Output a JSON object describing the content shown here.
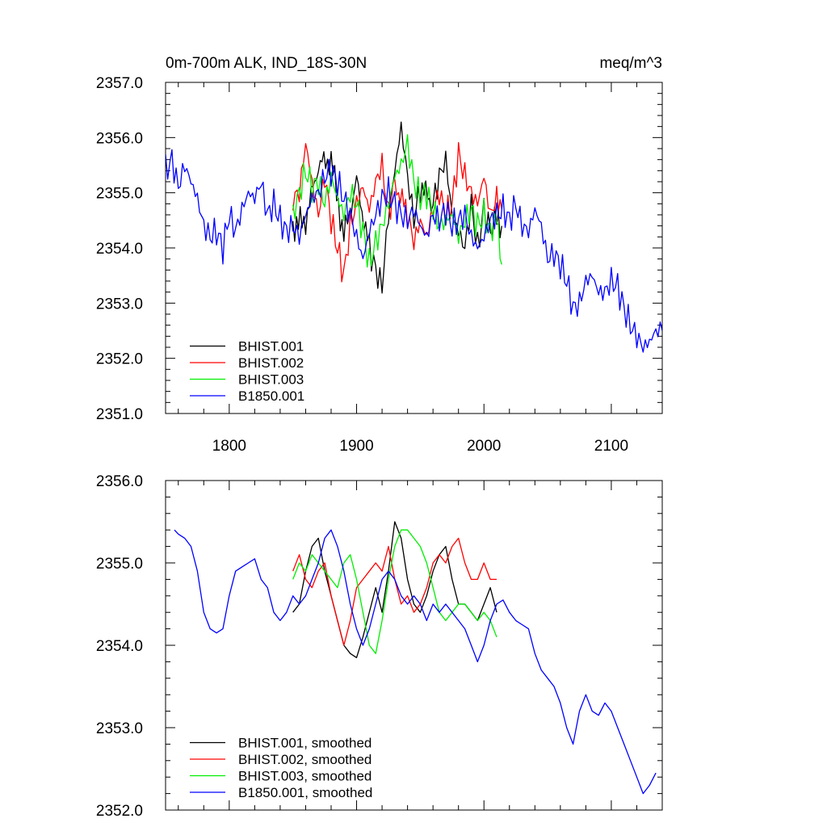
{
  "chart_data": [
    {
      "type": "line",
      "title": "0m-700m ALK, IND_18S-30N",
      "units": "meq/m^3",
      "xlim": [
        1750,
        2140
      ],
      "ylim": [
        2351.0,
        2357.0
      ],
      "yticks": [
        "2351.0",
        "2352.0",
        "2353.0",
        "2354.0",
        "2355.0",
        "2356.0",
        "2357.0"
      ],
      "xticks": [
        "1800",
        "1900",
        "2000",
        "2100"
      ],
      "legend": "bottom-left",
      "series": [
        {
          "name": "BHIST.001",
          "color": "#000000",
          "x": [
            1850,
            1860,
            1870,
            1880,
            1890,
            1900,
            1910,
            1915,
            1920,
            1925,
            1930,
            1935,
            1940,
            1945,
            1950,
            1960,
            1965,
            1970,
            1975,
            1980,
            1985,
            1990,
            1995,
            2000,
            2005,
            2010,
            2014
          ],
          "y": [
            2354.4,
            2354.5,
            2355.5,
            2355.6,
            2354.2,
            2355.2,
            2354.0,
            2353.6,
            2353.3,
            2354.6,
            2355.4,
            2356.2,
            2355.3,
            2354.5,
            2355.1,
            2354.8,
            2355.3,
            2355.6,
            2354.6,
            2354.3,
            2354.0,
            2354.8,
            2354.0,
            2354.7,
            2354.3,
            2354.6,
            2354.4
          ]
        },
        {
          "name": "BHIST.002",
          "color": "#ff0000",
          "x": [
            1850,
            1855,
            1860,
            1865,
            1870,
            1875,
            1880,
            1885,
            1890,
            1895,
            1900,
            1905,
            1910,
            1915,
            1920,
            1925,
            1930,
            1940,
            1945,
            1950,
            1955,
            1960,
            1965,
            1970,
            1975,
            1980,
            1985,
            1990,
            1995,
            2000,
            2005,
            2010,
            2014
          ],
          "y": [
            2354.9,
            2355.0,
            2355.9,
            2355.2,
            2354.6,
            2355.3,
            2354.5,
            2354.0,
            2353.5,
            2354.4,
            2354.8,
            2355.1,
            2354.7,
            2355.2,
            2355.5,
            2354.6,
            2355.2,
            2354.6,
            2354.1,
            2354.5,
            2354.2,
            2354.7,
            2355.0,
            2354.6,
            2354.8,
            2355.7,
            2355.3,
            2355.0,
            2354.8,
            2355.3,
            2354.6,
            2354.9,
            2354.7
          ]
        },
        {
          "name": "BHIST.003",
          "color": "#00ee00",
          "x": [
            1850,
            1855,
            1860,
            1865,
            1870,
            1875,
            1880,
            1885,
            1890,
            1895,
            1900,
            1905,
            1910,
            1915,
            1920,
            1925,
            1930,
            1935,
            1940,
            1945,
            1950,
            1955,
            1960,
            1965,
            1970,
            1975,
            1980,
            1985,
            1990,
            1995,
            2000,
            2005,
            2010,
            2014
          ],
          "y": [
            2354.6,
            2355.0,
            2355.4,
            2355.1,
            2355.2,
            2354.8,
            2355.3,
            2354.9,
            2354.6,
            2355.0,
            2354.8,
            2354.3,
            2353.7,
            2354.1,
            2354.4,
            2354.8,
            2355.3,
            2355.5,
            2355.9,
            2355.2,
            2354.9,
            2355.0,
            2354.7,
            2354.4,
            2354.5,
            2354.6,
            2354.2,
            2354.5,
            2354.7,
            2354.4,
            2354.6,
            2354.3,
            2354.5,
            2353.7
          ]
        },
        {
          "name": "B1850.001",
          "color": "#0000ff",
          "x": [
            1750,
            1755,
            1760,
            1765,
            1770,
            1775,
            1780,
            1785,
            1790,
            1795,
            1800,
            1805,
            1810,
            1815,
            1820,
            1825,
            1830,
            1835,
            1840,
            1845,
            1850,
            1855,
            1860,
            1865,
            1870,
            1875,
            1880,
            1885,
            1890,
            1895,
            1900,
            1905,
            1910,
            1915,
            1920,
            1925,
            1930,
            1935,
            1940,
            1945,
            1950,
            1955,
            1960,
            1965,
            1970,
            1975,
            1980,
            1985,
            1990,
            1995,
            2000,
            2005,
            2010,
            2015,
            2020,
            2025,
            2030,
            2035,
            2040,
            2045,
            2050,
            2055,
            2060,
            2065,
            2070,
            2075,
            2080,
            2085,
            2090,
            2095,
            2100,
            2105,
            2110,
            2115,
            2120,
            2125,
            2130,
            2135,
            2140
          ],
          "y": [
            2355.4,
            2355.6,
            2355.1,
            2355.5,
            2355.2,
            2354.9,
            2354.4,
            2354.2,
            2354.3,
            2354.0,
            2354.6,
            2354.3,
            2354.7,
            2355.0,
            2354.9,
            2355.2,
            2354.6,
            2354.8,
            2354.5,
            2354.3,
            2354.4,
            2354.2,
            2354.6,
            2354.9,
            2355.0,
            2355.3,
            2355.4,
            2355.2,
            2354.9,
            2354.6,
            2354.2,
            2353.8,
            2354.3,
            2354.6,
            2354.9,
            2355.0,
            2354.8,
            2354.6,
            2354.5,
            2354.7,
            2354.4,
            2354.2,
            2354.6,
            2354.5,
            2354.7,
            2354.4,
            2354.5,
            2354.6,
            2354.2,
            2354.0,
            2354.2,
            2354.5,
            2354.6,
            2354.7,
            2354.5,
            2354.8,
            2354.4,
            2354.3,
            2354.7,
            2354.4,
            2353.8,
            2353.9,
            2353.7,
            2353.4,
            2352.9,
            2353.0,
            2353.4,
            2353.5,
            2353.2,
            2353.2,
            2353.4,
            2353.3,
            2352.9,
            2352.6,
            2352.4,
            2352.2,
            2352.3,
            2352.5,
            2352.5
          ]
        }
      ]
    },
    {
      "type": "line",
      "xlim": [
        1750,
        2140
      ],
      "ylim": [
        2352.0,
        2356.0
      ],
      "yticks": [
        "2352.0",
        "2353.0",
        "2354.0",
        "2355.0",
        "2356.0"
      ],
      "xticks": [],
      "legend": "bottom-left",
      "series": [
        {
          "name": "BHIST.001, smoothed",
          "color": "#000000",
          "x": [
            1850,
            1855,
            1860,
            1865,
            1870,
            1875,
            1880,
            1885,
            1890,
            1895,
            1900,
            1905,
            1910,
            1915,
            1920,
            1925,
            1930,
            1935,
            1940,
            1945,
            1950,
            1955,
            1960,
            1965,
            1970,
            1975,
            1980,
            1985,
            1990,
            1995,
            2000,
            2005,
            2010
          ],
          "y": [
            2354.4,
            2354.5,
            2354.9,
            2355.2,
            2355.3,
            2354.9,
            2354.6,
            2354.3,
            2354.0,
            2353.9,
            2353.85,
            2354.1,
            2354.4,
            2354.7,
            2354.4,
            2354.9,
            2355.5,
            2355.3,
            2354.8,
            2354.5,
            2354.4,
            2354.6,
            2354.9,
            2355.1,
            2355.2,
            2354.8,
            2354.5,
            2354.5,
            2354.4,
            2354.3,
            2354.5,
            2354.7,
            2354.4
          ]
        },
        {
          "name": "BHIST.002, smoothed",
          "color": "#ff0000",
          "x": [
            1850,
            1855,
            1860,
            1865,
            1870,
            1875,
            1880,
            1885,
            1890,
            1895,
            1900,
            1905,
            1910,
            1915,
            1920,
            1925,
            1930,
            1935,
            1940,
            1945,
            1950,
            1955,
            1960,
            1965,
            1970,
            1975,
            1980,
            1985,
            1990,
            1995,
            2000,
            2005,
            2010
          ],
          "y": [
            2354.9,
            2355.1,
            2354.8,
            2354.7,
            2354.9,
            2355.0,
            2354.6,
            2354.3,
            2354.0,
            2354.3,
            2354.7,
            2354.8,
            2354.9,
            2355.0,
            2354.9,
            2355.2,
            2354.8,
            2354.5,
            2354.6,
            2354.4,
            2354.5,
            2354.7,
            2355.0,
            2355.1,
            2355.0,
            2355.2,
            2355.3,
            2355.0,
            2354.8,
            2354.8,
            2355.0,
            2354.8,
            2354.8
          ]
        },
        {
          "name": "BHIST.003, smoothed",
          "color": "#00ee00",
          "x": [
            1850,
            1855,
            1860,
            1865,
            1870,
            1875,
            1880,
            1885,
            1890,
            1895,
            1900,
            1905,
            1910,
            1915,
            1920,
            1925,
            1930,
            1935,
            1940,
            1945,
            1950,
            1955,
            1960,
            1965,
            1970,
            1975,
            1980,
            1985,
            1990,
            1995,
            2000,
            2005,
            2010
          ],
          "y": [
            2354.8,
            2355.0,
            2354.9,
            2355.1,
            2355.0,
            2354.9,
            2354.8,
            2354.7,
            2355.0,
            2355.1,
            2354.8,
            2354.4,
            2354.0,
            2353.9,
            2354.3,
            2354.8,
            2355.2,
            2355.4,
            2355.4,
            2355.3,
            2355.2,
            2355.0,
            2354.7,
            2354.4,
            2354.3,
            2354.4,
            2354.5,
            2354.5,
            2354.4,
            2354.3,
            2354.4,
            2354.3,
            2354.1
          ]
        },
        {
          "name": "B1850.001, smoothed",
          "color": "#0000ff",
          "x": [
            1757,
            1760,
            1765,
            1770,
            1775,
            1780,
            1785,
            1790,
            1795,
            1800,
            1805,
            1810,
            1815,
            1820,
            1825,
            1830,
            1835,
            1840,
            1845,
            1850,
            1855,
            1860,
            1865,
            1870,
            1875,
            1880,
            1885,
            1890,
            1895,
            1900,
            1905,
            1910,
            1915,
            1920,
            1925,
            1930,
            1935,
            1940,
            1945,
            1950,
            1955,
            1960,
            1965,
            1970,
            1975,
            1980,
            1985,
            1990,
            1995,
            2000,
            2005,
            2010,
            2015,
            2020,
            2025,
            2030,
            2035,
            2040,
            2045,
            2050,
            2055,
            2060,
            2065,
            2070,
            2075,
            2080,
            2085,
            2090,
            2095,
            2100,
            2105,
            2110,
            2115,
            2120,
            2125,
            2130,
            2135
          ],
          "y": [
            2355.4,
            2355.35,
            2355.3,
            2355.2,
            2354.9,
            2354.4,
            2354.2,
            2354.15,
            2354.2,
            2354.6,
            2354.9,
            2354.95,
            2355.0,
            2355.05,
            2354.8,
            2354.7,
            2354.4,
            2354.3,
            2354.4,
            2354.6,
            2354.5,
            2354.6,
            2354.8,
            2355.0,
            2355.3,
            2355.4,
            2355.2,
            2354.9,
            2354.5,
            2354.2,
            2354.0,
            2354.2,
            2354.5,
            2354.8,
            2354.9,
            2354.8,
            2354.6,
            2354.5,
            2354.6,
            2354.5,
            2354.3,
            2354.5,
            2354.4,
            2354.5,
            2354.4,
            2354.3,
            2354.2,
            2354.0,
            2353.8,
            2354.0,
            2354.3,
            2354.5,
            2354.55,
            2354.4,
            2354.3,
            2354.25,
            2354.2,
            2353.9,
            2353.7,
            2353.6,
            2353.5,
            2353.3,
            2353.0,
            2352.8,
            2353.2,
            2353.4,
            2353.2,
            2353.15,
            2353.3,
            2353.2,
            2353.0,
            2352.8,
            2352.6,
            2352.4,
            2352.2,
            2352.3,
            2352.45
          ]
        }
      ]
    }
  ]
}
